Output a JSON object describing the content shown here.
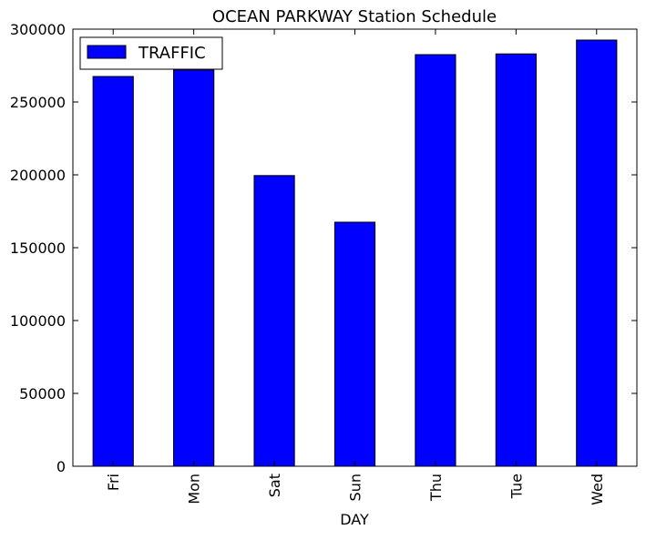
{
  "chart_data": {
    "type": "bar",
    "title": "OCEAN PARKWAY Station Schedule",
    "xlabel": "DAY",
    "ylabel": "",
    "categories": [
      "Fri",
      "Mon",
      "Sat",
      "Sun",
      "Thu",
      "Tue",
      "Wed"
    ],
    "series": [
      {
        "name": "TRAFFIC",
        "values": [
          267500,
          272000,
          199500,
          167500,
          282500,
          283000,
          292500
        ],
        "color": "#0000ff"
      }
    ],
    "ylim": [
      0,
      300000
    ],
    "yticks": [
      0,
      50000,
      100000,
      150000,
      200000,
      250000,
      300000
    ],
    "grid": false,
    "legend_position": "top-left"
  }
}
